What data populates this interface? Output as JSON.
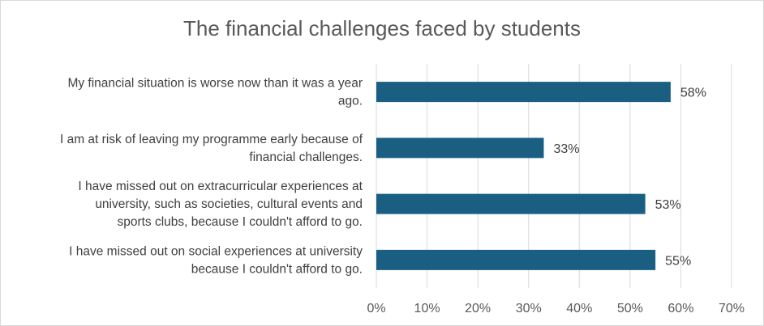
{
  "chart_data": {
    "type": "bar",
    "orientation": "horizontal",
    "title": "The financial challenges faced by students",
    "categories": [
      [
        "My financial situation is worse now than it was a year",
        "ago."
      ],
      [
        "I am at risk of leaving my programme early because of",
        "financial challenges."
      ],
      [
        "I have missed out on extracurricular experiences at",
        "university, such as societies, cultural events and",
        "sports clubs, because I couldn't afford to go."
      ],
      [
        "I have missed out on social experiences at university",
        "because I couldn't afford to go."
      ]
    ],
    "values": [
      58,
      33,
      53,
      55
    ],
    "data_labels": [
      "58%",
      "33%",
      "53%",
      "55%"
    ],
    "xlim": [
      0,
      70
    ],
    "ticks": [
      0,
      10,
      20,
      30,
      40,
      50,
      60,
      70
    ],
    "tick_labels": [
      "0%",
      "10%",
      "20%",
      "30%",
      "40%",
      "50%",
      "60%",
      "70%"
    ],
    "bar_color": "#1a5f82",
    "grid": true,
    "grid_color": "#d9d9d9"
  }
}
